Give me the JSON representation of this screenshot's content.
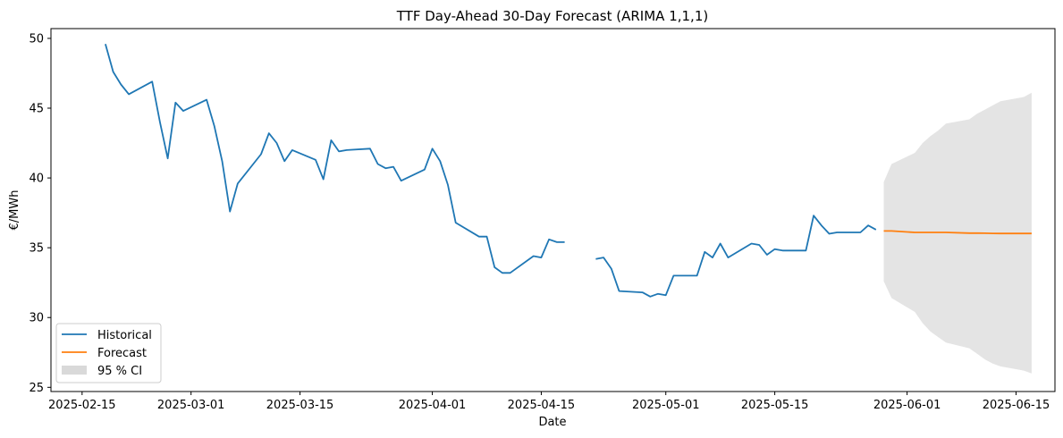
{
  "chart_data": {
    "type": "line",
    "title": "TTF Day-Ahead 30-Day Forecast (ARIMA 1,1,1)",
    "xlabel": "Date",
    "ylabel": "€/MWh",
    "xlim": [
      "2025-02-11",
      "2025-06-20"
    ],
    "ylim": [
      24.7,
      50.7
    ],
    "x_ticks": [
      "2025-02-15",
      "2025-03-01",
      "2025-03-15",
      "2025-04-01",
      "2025-04-15",
      "2025-05-01",
      "2025-05-15",
      "2025-06-01",
      "2025-06-15"
    ],
    "y_ticks": [
      25,
      30,
      35,
      40,
      45,
      50
    ],
    "grid": false,
    "legend_position": "lower-left",
    "colors": {
      "historical": "#1f77b4",
      "forecast": "#ff7f0e",
      "ci": "#d9d9d9"
    },
    "series": [
      {
        "name": "Historical",
        "points": [
          [
            "2025-02-18",
            49.6
          ],
          [
            "2025-02-19",
            47.6
          ],
          [
            "2025-02-20",
            46.7
          ],
          [
            "2025-02-21",
            46.0
          ],
          [
            "2025-02-24",
            46.9
          ],
          [
            "2025-02-25",
            44.0
          ],
          [
            "2025-02-26",
            41.4
          ],
          [
            "2025-02-27",
            45.4
          ],
          [
            "2025-02-28",
            44.8
          ],
          [
            "2025-03-03",
            45.6
          ],
          [
            "2025-03-04",
            43.7
          ],
          [
            "2025-03-05",
            41.2
          ],
          [
            "2025-03-06",
            37.6
          ],
          [
            "2025-03-07",
            39.6
          ],
          [
            "2025-03-10",
            41.7
          ],
          [
            "2025-03-11",
            43.2
          ],
          [
            "2025-03-12",
            42.5
          ],
          [
            "2025-03-13",
            41.2
          ],
          [
            "2025-03-14",
            42.0
          ],
          [
            "2025-03-17",
            41.3
          ],
          [
            "2025-03-18",
            39.9
          ],
          [
            "2025-03-19",
            42.7
          ],
          [
            "2025-03-20",
            41.9
          ],
          [
            "2025-03-21",
            42.0
          ],
          [
            "2025-03-24",
            42.1
          ],
          [
            "2025-03-25",
            41.0
          ],
          [
            "2025-03-26",
            40.7
          ],
          [
            "2025-03-27",
            40.8
          ],
          [
            "2025-03-28",
            39.8
          ],
          [
            "2025-03-31",
            40.6
          ],
          [
            "2025-04-01",
            42.1
          ],
          [
            "2025-04-02",
            41.2
          ],
          [
            "2025-04-03",
            39.5
          ],
          [
            "2025-04-04",
            36.8
          ],
          [
            "2025-04-07",
            35.8
          ],
          [
            "2025-04-08",
            35.8
          ],
          [
            "2025-04-09",
            33.6
          ],
          [
            "2025-04-10",
            33.2
          ],
          [
            "2025-04-11",
            33.2
          ],
          [
            "2025-04-14",
            34.4
          ],
          [
            "2025-04-15",
            34.3
          ],
          [
            "2025-04-16",
            35.6
          ],
          [
            "2025-04-17",
            35.4
          ],
          [
            "2025-04-18",
            35.4
          ],
          null,
          [
            "2025-04-22",
            34.2
          ],
          [
            "2025-04-23",
            34.3
          ],
          [
            "2025-04-24",
            33.5
          ],
          [
            "2025-04-25",
            31.9
          ],
          [
            "2025-04-28",
            31.8
          ],
          [
            "2025-04-29",
            31.5
          ],
          [
            "2025-04-30",
            31.7
          ],
          [
            "2025-05-01",
            31.6
          ],
          [
            "2025-05-02",
            33.0
          ],
          [
            "2025-05-05",
            33.0
          ],
          [
            "2025-05-06",
            34.7
          ],
          [
            "2025-05-07",
            34.3
          ],
          [
            "2025-05-08",
            35.3
          ],
          [
            "2025-05-09",
            34.3
          ],
          [
            "2025-05-12",
            35.3
          ],
          [
            "2025-05-13",
            35.2
          ],
          [
            "2025-05-14",
            34.5
          ],
          [
            "2025-05-15",
            34.9
          ],
          [
            "2025-05-16",
            34.8
          ],
          [
            "2025-05-19",
            34.8
          ],
          [
            "2025-05-20",
            37.3
          ],
          [
            "2025-05-21",
            36.6
          ],
          [
            "2025-05-22",
            36.0
          ],
          [
            "2025-05-23",
            36.1
          ],
          [
            "2025-05-26",
            36.1
          ],
          [
            "2025-05-27",
            36.6
          ],
          [
            "2025-05-28",
            36.3
          ]
        ]
      },
      {
        "name": "Forecast",
        "points": [
          [
            "2025-05-29",
            36.2
          ],
          [
            "2025-05-30",
            36.2
          ],
          [
            "2025-06-02",
            36.1
          ],
          [
            "2025-06-03",
            36.1
          ],
          [
            "2025-06-04",
            36.1
          ],
          [
            "2025-06-05",
            36.1
          ],
          [
            "2025-06-06",
            36.1
          ],
          [
            "2025-06-09",
            36.05
          ],
          [
            "2025-06-10",
            36.05
          ],
          [
            "2025-06-11",
            36.04
          ],
          [
            "2025-06-12",
            36.03
          ],
          [
            "2025-06-13",
            36.02
          ],
          [
            "2025-06-16",
            36.02
          ],
          [
            "2025-06-17",
            36.02
          ]
        ]
      }
    ],
    "confidence_band": {
      "name": "95 % CI",
      "points": [
        [
          "2025-05-29",
          32.6,
          39.7
        ],
        [
          "2025-05-30",
          31.4,
          41.0
        ],
        [
          "2025-06-02",
          30.4,
          41.8
        ],
        [
          "2025-06-03",
          29.6,
          42.5
        ],
        [
          "2025-06-04",
          29.0,
          43.0
        ],
        [
          "2025-06-05",
          28.6,
          43.4
        ],
        [
          "2025-06-06",
          28.2,
          43.9
        ],
        [
          "2025-06-09",
          27.8,
          44.2
        ],
        [
          "2025-06-10",
          27.4,
          44.6
        ],
        [
          "2025-06-11",
          27.0,
          44.9
        ],
        [
          "2025-06-12",
          26.7,
          45.2
        ],
        [
          "2025-06-13",
          26.5,
          45.5
        ],
        [
          "2025-06-16",
          26.2,
          45.8
        ],
        [
          "2025-06-17",
          26.0,
          46.1
        ]
      ]
    }
  }
}
